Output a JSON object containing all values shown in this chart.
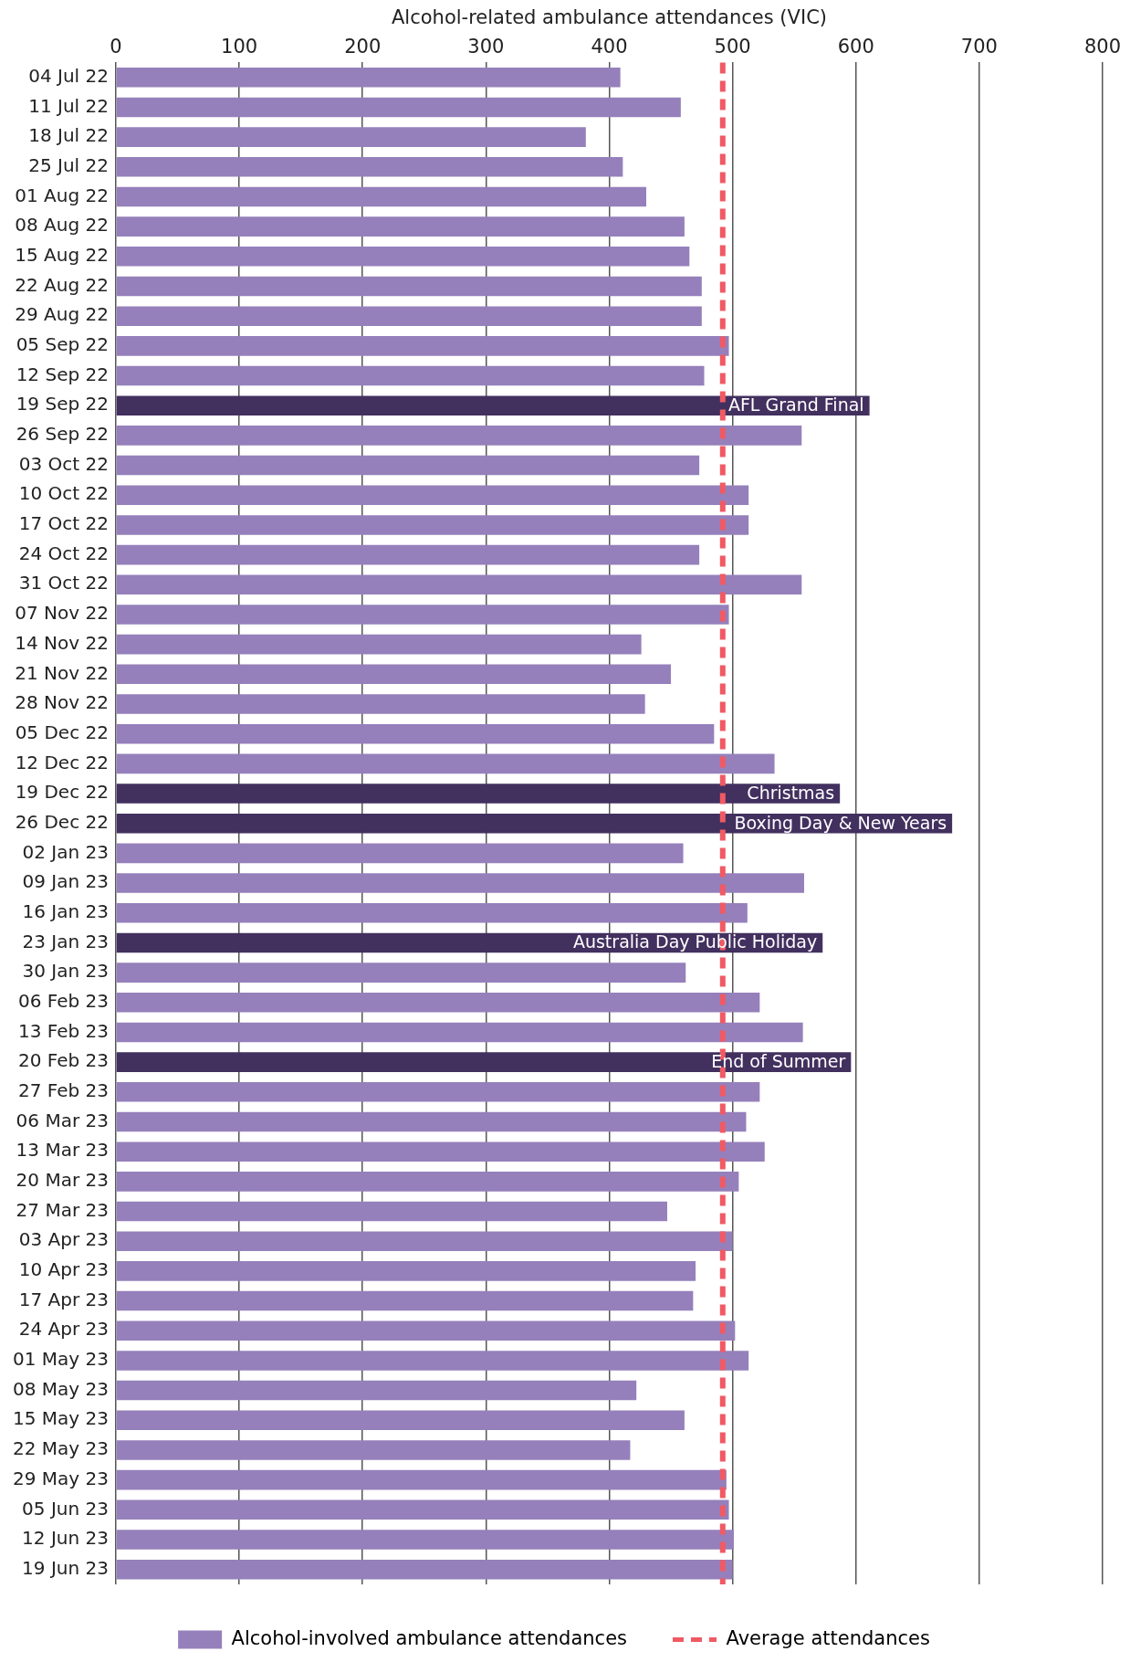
{
  "chart_data": {
    "type": "bar",
    "orientation": "horizontal",
    "xlabel": "Alcohol-related ambulance attendances (VIC)",
    "categories": [
      "04 Jul 22",
      "11 Jul 22",
      "18 Jul 22",
      "25 Jul 22",
      "01 Aug 22",
      "08 Aug 22",
      "15 Aug 22",
      "22 Aug 22",
      "29 Aug 22",
      "05 Sep 22",
      "12 Sep 22",
      "19 Sep 22",
      "26 Sep 22",
      "03 Oct 22",
      "10 Oct 22",
      "17 Oct 22",
      "24 Oct 22",
      "31 Oct 22",
      "07 Nov 22",
      "14 Nov 22",
      "21 Nov 22",
      "28 Nov 22",
      "05 Dec 22",
      "12 Dec 22",
      "19 Dec 22",
      "26 Dec 22",
      "02 Jan 23",
      "09 Jan 23",
      "16 Jan 23",
      "23 Jan 23",
      "30 Jan 23",
      "06 Feb 23",
      "13 Feb 23",
      "20 Feb 23",
      "27 Feb 23",
      "06 Mar 23",
      "13 Mar 23",
      "20 Mar 23",
      "27 Mar 23",
      "03 Apr 23",
      "10 Apr 23",
      "17 Apr 23",
      "24 Apr 23",
      "01 May 23",
      "08 May 23",
      "15 May 23",
      "22 May 23",
      "29 May 23",
      "05 Jun 23",
      "12 Jun 23",
      "19 Jun 23"
    ],
    "series": [
      {
        "name": "Alcohol-involved ambulance attendances",
        "color": "#9580bb",
        "values": [
          409,
          458,
          381,
          411,
          430,
          461,
          465,
          475,
          475,
          497,
          477,
          611,
          556,
          473,
          513,
          513,
          473,
          556,
          497,
          426,
          450,
          429,
          485,
          534,
          587,
          678,
          460,
          558,
          512,
          573,
          462,
          522,
          557,
          596,
          522,
          511,
          526,
          505,
          447,
          500,
          470,
          468,
          502,
          513,
          422,
          461,
          417,
          495,
          497,
          501,
          500
        ],
        "colors": [
          "#9580bb",
          "#9580bb",
          "#9580bb",
          "#9580bb",
          "#9580bb",
          "#9580bb",
          "#9580bb",
          "#9580bb",
          "#9580bb",
          "#9580bb",
          "#9580bb",
          "#42305f",
          "#9580bb",
          "#9580bb",
          "#9580bb",
          "#9580bb",
          "#9580bb",
          "#9580bb",
          "#9580bb",
          "#9580bb",
          "#9580bb",
          "#9580bb",
          "#9580bb",
          "#9580bb",
          "#42305f",
          "#42305f",
          "#9580bb",
          "#9580bb",
          "#9580bb",
          "#42305f",
          "#9580bb",
          "#9580bb",
          "#9580bb",
          "#42305f",
          "#9580bb",
          "#9580bb",
          "#9580bb",
          "#9580bb",
          "#9580bb",
          "#9580bb",
          "#9580bb",
          "#9580bb",
          "#9580bb",
          "#9580bb",
          "#9580bb",
          "#9580bb",
          "#9580bb",
          "#9580bb",
          "#9580bb",
          "#9580bb",
          "#9580bb"
        ]
      }
    ],
    "xlim": [
      0,
      800
    ],
    "xticks": [
      0,
      100,
      200,
      300,
      400,
      500,
      600,
      700,
      800
    ],
    "grid": "x",
    "legend": "bottom",
    "ref_lines": [
      {
        "axis": "x",
        "value": 492,
        "label": "Average attendances",
        "color": "#f05a64",
        "line_style": "dashed"
      }
    ],
    "annotations": [
      {
        "text": "AFL Grand Final",
        "x": 611,
        "y": "19 Sep 22"
      },
      {
        "text": "Christmas",
        "x": 587,
        "y": "19 Dec 22"
      },
      {
        "text": "Boxing Day & New Years",
        "x": 678,
        "y": "26 Dec 22"
      },
      {
        "text": "Australia Day Public Holiday",
        "x": 573,
        "y": "23 Jan 23"
      },
      {
        "text": "End of Summer",
        "x": 596,
        "y": "20 Feb 23"
      }
    ]
  }
}
